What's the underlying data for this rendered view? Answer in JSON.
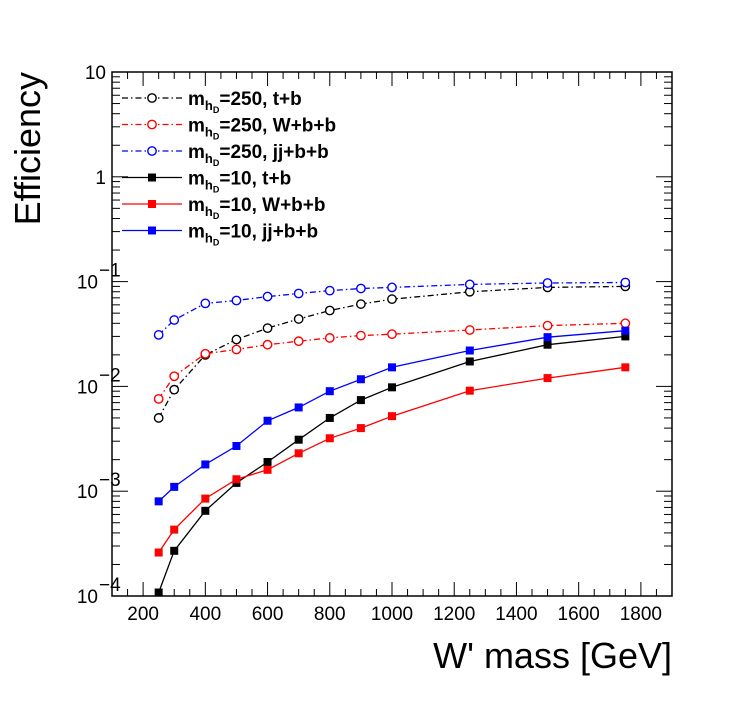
{
  "chart_data": {
    "type": "line",
    "title": "",
    "xlabel": "W' mass [GeV]",
    "ylabel": "Efficiency",
    "xlim": [
      100,
      1900
    ],
    "ylim": [
      0.0001,
      10
    ],
    "yscale": "log",
    "grid": false,
    "legend_position": "top-left",
    "x_ticks": [
      200,
      400,
      600,
      800,
      1000,
      1200,
      1400,
      1600,
      1800
    ],
    "x_tick_labels": [
      "200",
      "400",
      "600",
      "800",
      "1000",
      "1200",
      "1400",
      "1600",
      "1800"
    ],
    "y_ticks": [
      {
        "value": 10,
        "base": "10",
        "exp": ""
      },
      {
        "value": 1,
        "base": "1",
        "exp": ""
      },
      {
        "value": 0.1,
        "base": "10",
        "exp": "−1"
      },
      {
        "value": 0.01,
        "base": "10",
        "exp": "−2"
      },
      {
        "value": 0.001,
        "base": "10",
        "exp": "−3"
      },
      {
        "value": 0.0001,
        "base": "10",
        "exp": "−4"
      }
    ],
    "legend_prefix": "m",
    "legend_subscript": "h",
    "legend_subsubscript": "D",
    "series": [
      {
        "label": "=250, t+b",
        "color": "#000000",
        "marker": "open-circle",
        "dashed": true,
        "x": [
          250,
          300,
          400,
          500,
          600,
          700,
          800,
          900,
          1000,
          1250,
          1500,
          1750
        ],
        "y": [
          0.005,
          0.0093,
          0.02,
          0.028,
          0.036,
          0.044,
          0.053,
          0.061,
          0.068,
          0.08,
          0.088,
          0.09
        ]
      },
      {
        "label": "=250, W+b+b",
        "color": "#ff0000",
        "marker": "open-circle",
        "dashed": true,
        "x": [
          250,
          300,
          400,
          500,
          600,
          700,
          800,
          900,
          1000,
          1250,
          1500,
          1750
        ],
        "y": [
          0.0076,
          0.0125,
          0.0205,
          0.0225,
          0.025,
          0.027,
          0.029,
          0.0305,
          0.0315,
          0.0345,
          0.038,
          0.04
        ]
      },
      {
        "label": "=250, jj+b+b",
        "color": "#0000ff",
        "marker": "open-circle",
        "dashed": true,
        "x": [
          250,
          300,
          400,
          500,
          600,
          700,
          800,
          900,
          1000,
          1250,
          1500,
          1750
        ],
        "y": [
          0.031,
          0.043,
          0.062,
          0.066,
          0.072,
          0.077,
          0.082,
          0.086,
          0.088,
          0.094,
          0.097,
          0.098
        ]
      },
      {
        "label": "=10, t+b",
        "color": "#000000",
        "marker": "filled-square",
        "dashed": false,
        "x": [
          250,
          300,
          400,
          500,
          600,
          700,
          800,
          900,
          1000,
          1250,
          1500,
          1750
        ],
        "y": [
          0.000108,
          0.00027,
          0.00065,
          0.0012,
          0.0019,
          0.0031,
          0.005,
          0.0074,
          0.0098,
          0.0173,
          0.025,
          0.03
        ]
      },
      {
        "label": "=10, W+b+b",
        "color": "#ff0000",
        "marker": "filled-square",
        "dashed": false,
        "x": [
          250,
          300,
          400,
          500,
          600,
          700,
          800,
          900,
          1000,
          1250,
          1500,
          1750
        ],
        "y": [
          0.00026,
          0.00043,
          0.00085,
          0.0013,
          0.0016,
          0.0023,
          0.0032,
          0.004,
          0.0052,
          0.0091,
          0.012,
          0.0152
        ]
      },
      {
        "label": "=10, jj+b+b",
        "color": "#0000ff",
        "marker": "filled-square",
        "dashed": false,
        "x": [
          250,
          300,
          400,
          500,
          600,
          700,
          800,
          900,
          1000,
          1250,
          1500,
          1750
        ],
        "y": [
          0.0008,
          0.0011,
          0.0018,
          0.0027,
          0.0047,
          0.0063,
          0.009,
          0.0117,
          0.0152,
          0.022,
          0.0295,
          0.034
        ]
      }
    ]
  }
}
